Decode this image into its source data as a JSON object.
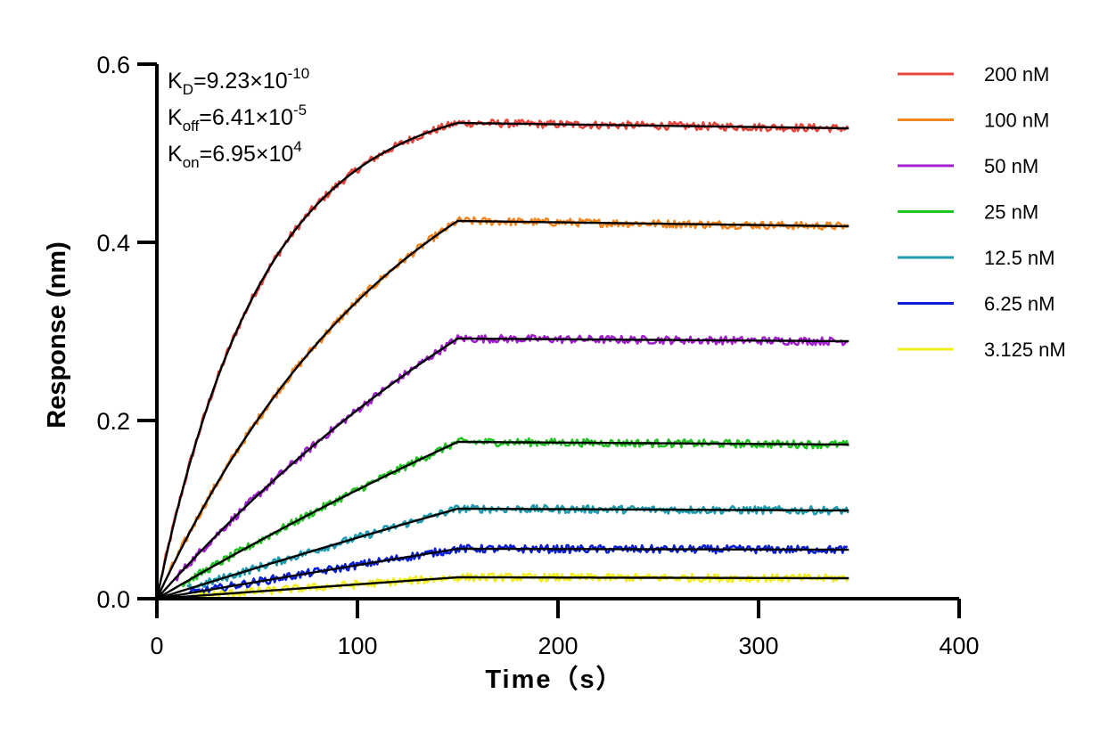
{
  "chart_data": {
    "type": "line",
    "title": "",
    "xlabel": "Time（s）",
    "ylabel": "Response (nm)",
    "xlim": [
      0,
      400
    ],
    "ylim": [
      0,
      0.6
    ],
    "x_ticks": [
      "0",
      "100",
      "200",
      "300",
      "400"
    ],
    "y_ticks": [
      "0.0",
      "0.2",
      "0.4",
      "0.6"
    ],
    "grid": false,
    "legend_position": "top-right",
    "association_end_s": 150,
    "end_time_s": 345,
    "annotations": [
      {
        "symbol": "K",
        "sub": "D",
        "value": "=9.23×10",
        "exp": "-10"
      },
      {
        "symbol": "K",
        "sub": "off",
        "value": "=6.41×10",
        "exp": "-5"
      },
      {
        "symbol": "K",
        "sub": "on",
        "value": "=6.95×10",
        "exp": "4"
      }
    ],
    "fit_color": "#000000",
    "series": [
      {
        "name": "200 nM",
        "color": "#e8453c",
        "plateau": 0.534,
        "end": 0.528,
        "shape": 2.85
      },
      {
        "name": "100 nM",
        "color": "#f5861f",
        "plateau": 0.424,
        "end": 0.418,
        "shape": 1.2
      },
      {
        "name": "50 nM",
        "color": "#a21fd0",
        "plateau": 0.292,
        "end": 0.289,
        "shape": 0.55
      },
      {
        "name": "25 nM",
        "color": "#22c322",
        "plateau": 0.176,
        "end": 0.173,
        "shape": 0.25
      },
      {
        "name": "12.5 nM",
        "color": "#1f9cb0",
        "plateau": 0.101,
        "end": 0.099,
        "shape": 0.1
      },
      {
        "name": "6.25 nM",
        "color": "#0a1fd6",
        "plateau": 0.056,
        "end": 0.055,
        "shape": 0.05
      },
      {
        "name": "3.125 nM",
        "color": "#f2ee1a",
        "plateau": 0.024,
        "end": 0.023,
        "shape": 0.03
      }
    ]
  }
}
